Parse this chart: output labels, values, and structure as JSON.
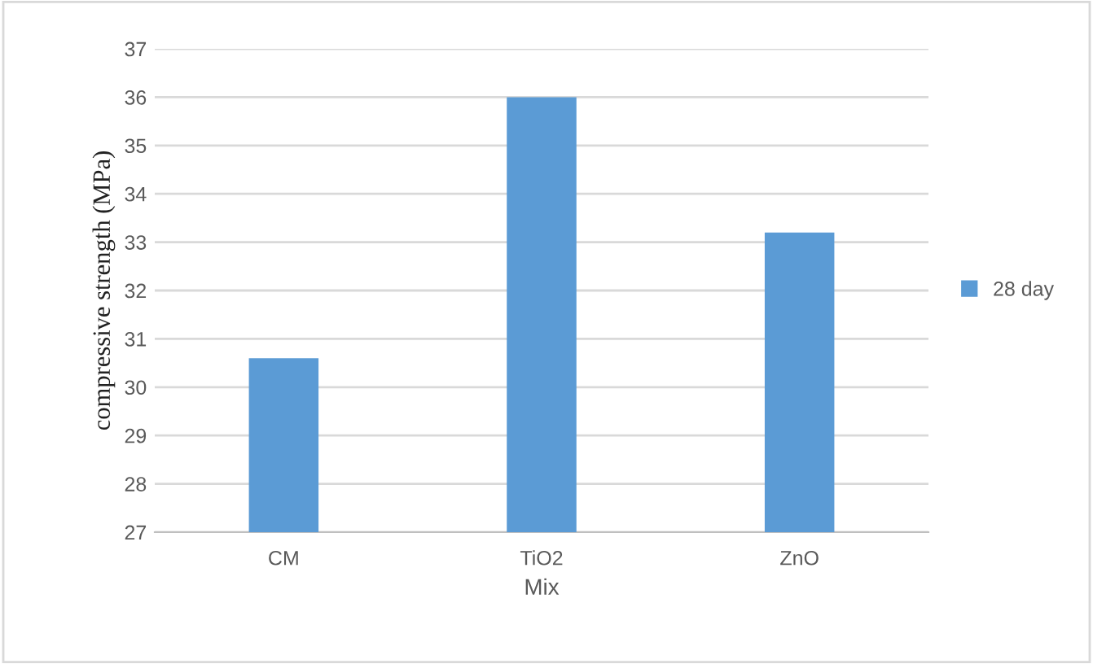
{
  "chart_data": {
    "type": "bar",
    "xlabel": "Mix",
    "ylabel": "compressive strength (MPa)",
    "categories": [
      "CM",
      "TiO2",
      "ZnO"
    ],
    "series": [
      {
        "name": "28 day",
        "color": "#5b9bd5",
        "values": [
          30.6,
          36.0,
          33.2
        ]
      }
    ],
    "ylim": [
      27,
      37
    ],
    "yticks": [
      27,
      28,
      29,
      30,
      31,
      32,
      33,
      34,
      35,
      36,
      37
    ],
    "grid": "y",
    "legend": "right"
  }
}
